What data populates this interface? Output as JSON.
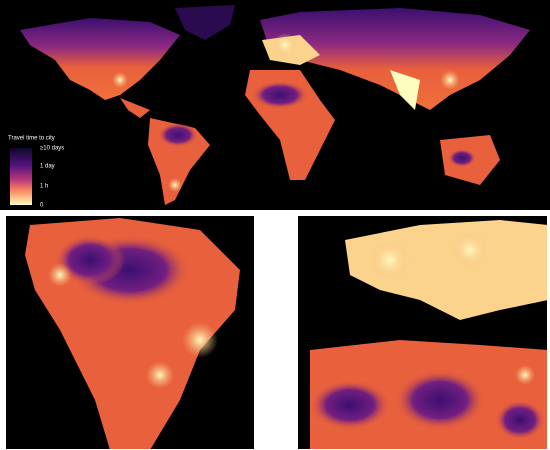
{
  "legend": {
    "title": "Travel time to city",
    "labels": [
      "≥10 days",
      "1 day",
      "1 h",
      "0"
    ]
  }
}
